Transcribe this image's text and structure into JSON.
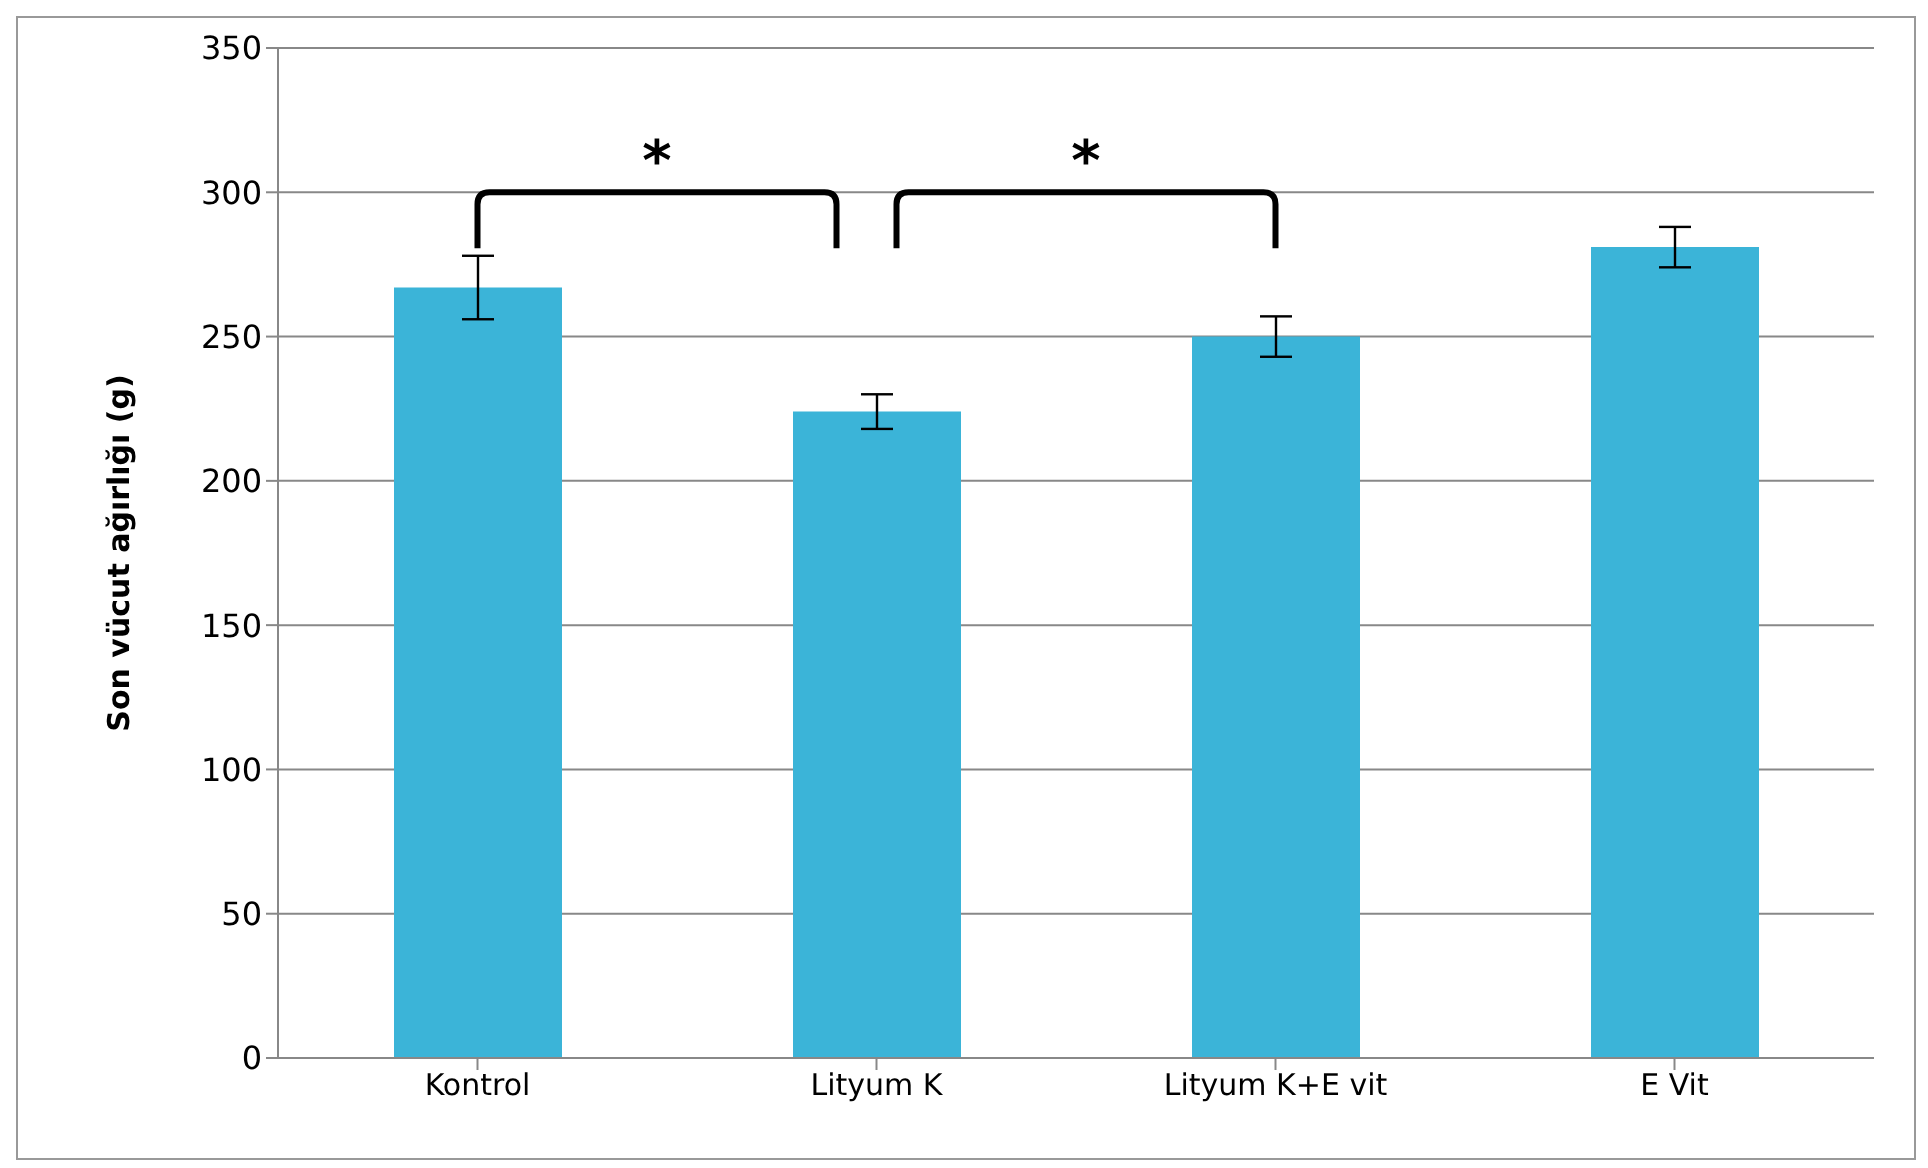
{
  "chart_data": {
    "type": "bar",
    "ylabel": "Son vücut ağırlığı (g)",
    "categories": [
      "Kontrol",
      "Lityum K",
      "Lityum K+E vit",
      "E Vit"
    ],
    "values": [
      267,
      224,
      250,
      281
    ],
    "errors": [
      11,
      6,
      7,
      7
    ],
    "color": "#3bb4d8",
    "ylim": [
      0,
      350
    ],
    "yticks": [
      0,
      50,
      100,
      150,
      200,
      250,
      300,
      350
    ],
    "grid": "y",
    "annotations": [
      "*",
      "*"
    ]
  }
}
